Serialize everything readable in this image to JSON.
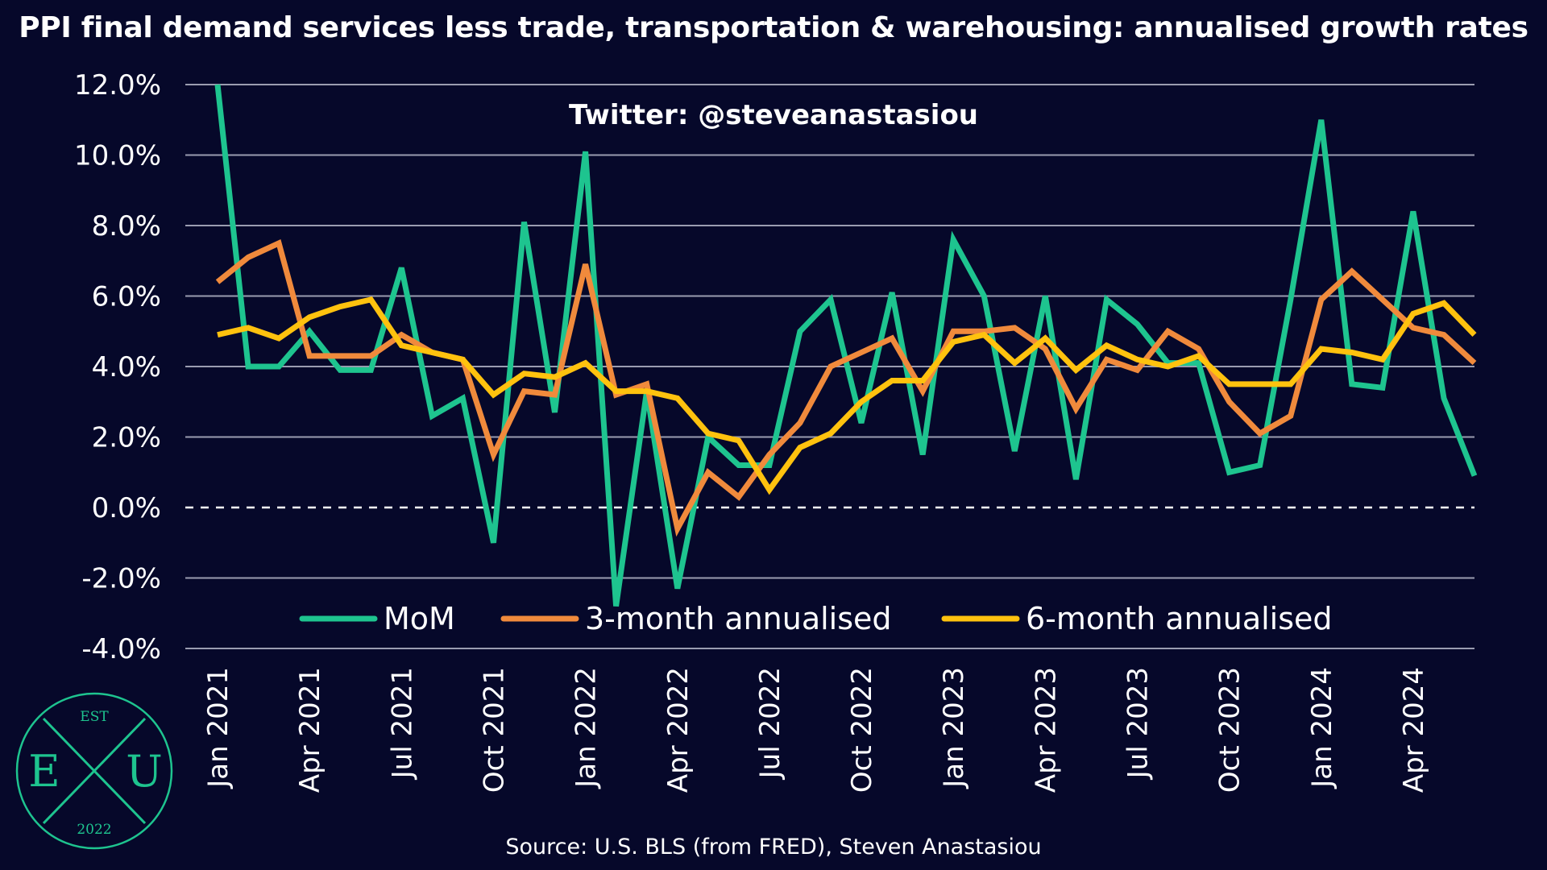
{
  "chart_data": {
    "type": "line",
    "title": "PPI final demand services less trade, transportation & warehousing: annualised growth rates",
    "annotation": "Twitter: @steveanastasiou",
    "source": "Source: U.S. BLS (from FRED), Steven Anastasiou",
    "ylim": [
      -4.0,
      12.0
    ],
    "yticks": [
      "12.0%",
      "10.0%",
      "8.0%",
      "6.0%",
      "4.0%",
      "2.0%",
      "0.0%",
      "-2.0%",
      "-4.0%"
    ],
    "grid": true,
    "legend_position": "bottom",
    "x": [
      "Jan 2021",
      "Feb 2021",
      "Mar 2021",
      "Apr 2021",
      "May 2021",
      "Jun 2021",
      "Jul 2021",
      "Aug 2021",
      "Sep 2021",
      "Oct 2021",
      "Nov 2021",
      "Dec 2021",
      "Jan 2022",
      "Feb 2022",
      "Mar 2022",
      "Apr 2022",
      "May 2022",
      "Jun 2022",
      "Jul 2022",
      "Aug 2022",
      "Sep 2022",
      "Oct 2022",
      "Nov 2022",
      "Dec 2022",
      "Jan 2023",
      "Feb 2023",
      "Mar 2023",
      "Apr 2023",
      "May 2023",
      "Jun 2023",
      "Jul 2023",
      "Aug 2023",
      "Sep 2023",
      "Oct 2023",
      "Nov 2023",
      "Dec 2023",
      "Jan 2024",
      "Feb 2024",
      "Mar 2024",
      "Apr 2024",
      "May 2024",
      "Jun 2024"
    ],
    "xtick_labels": [
      "Jan 2021",
      "Apr 2021",
      "Jul 2021",
      "Oct 2021",
      "Jan 2022",
      "Apr 2022",
      "Jul 2022",
      "Oct 2022",
      "Jan 2023",
      "Apr 2023",
      "Jul 2023",
      "Oct 2023",
      "Jan 2024",
      "Apr 2024"
    ],
    "series": [
      {
        "name": "MoM",
        "color": "#1ec48f",
        "values": [
          12.0,
          4.0,
          4.0,
          5.0,
          3.9,
          3.9,
          6.8,
          2.6,
          3.1,
          -1.0,
          8.1,
          2.7,
          10.1,
          -2.8,
          3.3,
          -2.3,
          2.0,
          1.2,
          1.2,
          5.0,
          5.9,
          2.4,
          6.1,
          1.5,
          7.6,
          6.0,
          1.6,
          6.0,
          0.8,
          5.9,
          5.2,
          4.1,
          4.1,
          1.0,
          1.2,
          5.9,
          11.0,
          3.5,
          3.4,
          8.4,
          3.1,
          0.9
        ]
      },
      {
        "name": "3-month annualised",
        "color": "#f08a3c",
        "values": [
          6.4,
          7.1,
          7.5,
          4.3,
          4.3,
          4.3,
          4.9,
          4.4,
          4.2,
          1.5,
          3.3,
          3.2,
          6.9,
          3.2,
          3.5,
          -0.6,
          1.0,
          0.3,
          1.5,
          2.4,
          4.0,
          4.4,
          4.8,
          3.3,
          5.0,
          5.0,
          5.1,
          4.5,
          2.8,
          4.2,
          3.9,
          5.0,
          4.5,
          3.0,
          2.1,
          2.6,
          5.9,
          6.7,
          5.9,
          5.1,
          4.9,
          4.1
        ]
      },
      {
        "name": "6-month annualised",
        "color": "#ffc20e",
        "values": [
          4.9,
          5.1,
          4.8,
          5.4,
          5.7,
          5.9,
          4.6,
          4.4,
          4.2,
          3.2,
          3.8,
          3.7,
          4.1,
          3.3,
          3.3,
          3.1,
          2.1,
          1.9,
          0.5,
          1.7,
          2.1,
          3.0,
          3.6,
          3.6,
          4.7,
          4.9,
          4.1,
          4.8,
          3.9,
          4.6,
          4.2,
          4.0,
          4.3,
          3.5,
          3.5,
          3.5,
          4.5,
          4.4,
          4.2,
          5.5,
          5.8,
          4.9
        ]
      }
    ]
  },
  "logo": {
    "top_text": "EST",
    "left_letter": "E",
    "right_letter": "U",
    "bottom_text": "2022",
    "color": "#1ec48f"
  }
}
